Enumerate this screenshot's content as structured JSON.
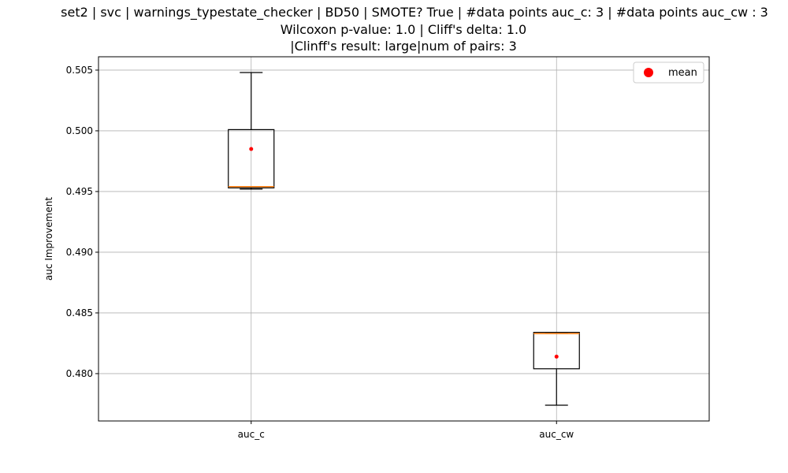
{
  "chart_data": {
    "type": "box",
    "title_lines": [
      "set2 | svc | warnings_typestate_checker | BD50 | SMOTE? True | #data points auc_c: 3 | #data points auc_cw : 3",
      "Wilcoxon p-value: 1.0 | Cliff's delta: 1.0",
      "|Clinff's result: large|num of pairs: 3"
    ],
    "xlabel": "",
    "ylabel": "auc Improvement",
    "ylim": [
      0.4761,
      0.5061
    ],
    "yticks": [
      "0.480",
      "0.485",
      "0.490",
      "0.495",
      "0.500",
      "0.505"
    ],
    "ytick_values": [
      0.48,
      0.485,
      0.49,
      0.495,
      0.5,
      0.505
    ],
    "grid": true,
    "legend": {
      "position": "upper-right",
      "entries": [
        "mean"
      ]
    },
    "categories": [
      "auc_c",
      "auc_cw"
    ],
    "boxes": [
      {
        "whisker_low": 0.4952,
        "q1": 0.4953,
        "median": 0.4954,
        "q3": 0.5001,
        "whisker_high": 0.5048,
        "mean": 0.4985
      },
      {
        "whisker_low": 0.4774,
        "q1": 0.4804,
        "median": 0.4833,
        "q3": 0.4834,
        "whisker_high": 0.4834,
        "mean": 0.4814
      }
    ],
    "colors": {
      "box": "#000000",
      "median": "#ff7f0e",
      "mean": "#ff0000",
      "grid": "#b0b0b0"
    }
  }
}
